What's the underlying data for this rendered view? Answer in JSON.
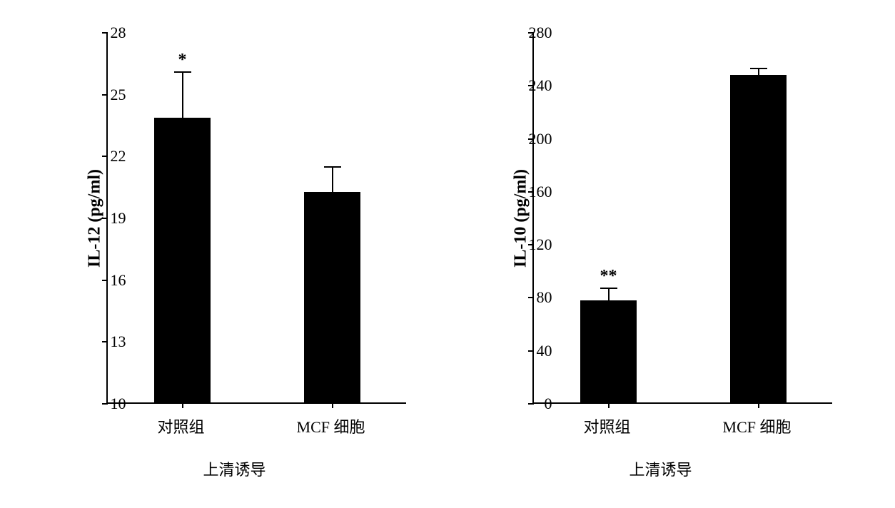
{
  "chart_left": {
    "type": "bar",
    "ylabel": "IL-12 (pg/ml)",
    "xlabel": "上清诱导",
    "ylabel_fontsize": 24,
    "xlabel_fontsize": 22,
    "categories": [
      "对照组",
      "MCF 细胞"
    ],
    "values": [
      23.8,
      20.2
    ],
    "errors": [
      2.3,
      1.3
    ],
    "sig_markers": [
      "*",
      ""
    ],
    "bar_color": "#000000",
    "ylim": [
      10,
      28
    ],
    "yticks": [
      10,
      13,
      16,
      19,
      22,
      25,
      28
    ],
    "bar_width": 0.38,
    "background_color": "#ffffff",
    "tick_font_size": 22
  },
  "chart_right": {
    "type": "bar",
    "ylabel": "IL-10 (pg/ml)",
    "xlabel": "上清诱导",
    "ylabel_fontsize": 24,
    "xlabel_fontsize": 22,
    "categories": [
      "对照组",
      "MCF 细胞"
    ],
    "values": [
      77,
      247
    ],
    "errors": [
      10,
      6
    ],
    "sig_markers": [
      "**",
      ""
    ],
    "bar_color": "#000000",
    "ylim": [
      0,
      280
    ],
    "yticks": [
      0,
      40,
      80,
      120,
      160,
      200,
      240,
      280
    ],
    "bar_width": 0.38,
    "background_color": "#ffffff",
    "tick_font_size": 22
  }
}
